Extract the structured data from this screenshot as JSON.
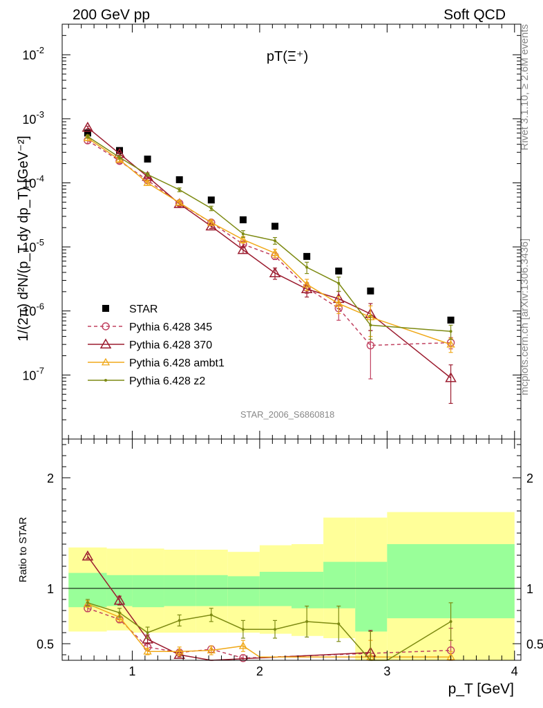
{
  "header": {
    "left_label": "200 GeV pp",
    "right_label": "Soft QCD"
  },
  "side_labels": {
    "rivet": "Rivet 3.1.10, ≥ 2.6M events",
    "mcplots": "mcplots.cern.ch [arXiv:1306.3436]"
  },
  "chart_data": [
    {
      "type": "scatter",
      "title": "pT(Ξ⁺)",
      "ylabel": "1/(2π) d²N/(p_T dy dp_T) [GeV⁻²]",
      "watermark": "STAR_2006_S6860818",
      "xlim": [
        0.45,
        4.05
      ],
      "ylim": [
        1e-08,
        0.03
      ],
      "yscale": "log",
      "x_ticks": [
        "1",
        "2",
        "3",
        "4"
      ],
      "y_ticks": [
        "10^-7",
        "10^-6",
        "10^-5",
        "10^-4",
        "10^-3",
        "10^-2"
      ],
      "legend_position": "lower-left",
      "series": [
        {
          "name": "STAR",
          "color": "#000000",
          "marker": "filled-square",
          "x": [
            0.65,
            0.9,
            1.12,
            1.37,
            1.62,
            1.87,
            2.12,
            2.37,
            2.62,
            2.87,
            3.5
          ],
          "y": [
            0.0006,
            0.00032,
            0.000235,
            0.000112,
            5.4e-05,
            2.65e-05,
            2.1e-05,
            7.1e-06,
            4.2e-06,
            2.05e-06,
            7.2e-07
          ]
        },
        {
          "name": "Pythia 6.428 345",
          "color": "#c0405f",
          "marker": "open-circle",
          "dashed": true,
          "x": [
            0.65,
            0.9,
            1.12,
            1.37,
            1.62,
            1.87,
            2.12,
            2.37,
            2.62,
            2.87,
            3.5
          ],
          "y": [
            0.00046,
            0.00022,
            0.00011,
            4.8e-05,
            2.4e-05,
            1.1e-05,
            7.2e-06,
            2.3e-06,
            1.1e-06,
            2.9e-07,
            3.2e-07
          ],
          "err": [
            0.1,
            0.08,
            0.06,
            0.06,
            0.08,
            0.1,
            0.12,
            0.18,
            0.35,
            0.7,
            0.2
          ]
        },
        {
          "name": "Pythia 6.428 370",
          "color": "#9b1b2e",
          "marker": "open-triangle",
          "dashed": false,
          "x": [
            0.65,
            0.9,
            1.12,
            1.37,
            1.62,
            1.87,
            2.12,
            2.37,
            2.62,
            2.87,
            3.5
          ],
          "y": [
            0.00073,
            0.000285,
            0.000125,
            4.7e-05,
            2.1e-05,
            9e-06,
            3.9e-06,
            2.2e-06,
            1.55e-06,
            9e-07,
            9e-08
          ],
          "err": [
            0.05,
            0.05,
            0.06,
            0.07,
            0.08,
            0.12,
            0.2,
            0.25,
            0.3,
            0.45,
            0.6
          ]
        },
        {
          "name": "Pythia 6.428 ambt1",
          "color": "#f0a91a",
          "marker": "open-triangle-small",
          "dashed": false,
          "x": [
            0.65,
            0.9,
            1.12,
            1.37,
            1.62,
            1.87,
            2.12,
            2.37,
            2.62,
            2.87,
            3.5
          ],
          "y": [
            0.0005,
            0.00023,
            0.0001,
            4.9e-05,
            2.4e-05,
            1.3e-05,
            8e-06,
            2.6e-06,
            1.3e-06,
            8e-07,
            3e-07
          ],
          "err": [
            0.08,
            0.07,
            0.08,
            0.08,
            0.1,
            0.12,
            0.15,
            0.2,
            0.3,
            0.5,
            0.25
          ]
        },
        {
          "name": "Pythia 6.428 z2",
          "color": "#7d8a12",
          "marker": "dot",
          "dashed": false,
          "x": [
            0.65,
            0.9,
            1.12,
            1.37,
            1.62,
            1.87,
            2.12,
            2.37,
            2.62,
            2.87,
            3.5
          ],
          "y": [
            0.00053,
            0.00025,
            0.000135,
            7.8e-05,
            4e-05,
            1.6e-05,
            1.25e-05,
            4.8e-06,
            2.7e-06,
            6e-07,
            4.8e-07
          ],
          "err": [
            0.06,
            0.06,
            0.06,
            0.07,
            0.08,
            0.12,
            0.12,
            0.2,
            0.25,
            0.4,
            0.25
          ]
        }
      ]
    },
    {
      "type": "line",
      "ylabel": "Ratio to STAR",
      "xlabel": "p_T [GeV]",
      "xlim": [
        0.45,
        4.05
      ],
      "ylim": [
        0.35,
        2.35
      ],
      "reference": 1,
      "x_ticks": [
        "1",
        "2",
        "3",
        "4"
      ],
      "y_ticks": [
        "0.5",
        "1",
        "2"
      ],
      "bands": {
        "x_edges": [
          0.5,
          0.8,
          1.0,
          1.25,
          1.5,
          1.75,
          2.0,
          2.25,
          2.5,
          2.75,
          3.0,
          4.0
        ],
        "inner_lo": [
          0.83,
          0.84,
          0.83,
          0.84,
          0.84,
          0.84,
          0.84,
          0.82,
          0.82,
          0.61,
          0.73
        ],
        "inner_hi": [
          1.14,
          1.12,
          1.12,
          1.12,
          1.12,
          1.11,
          1.15,
          1.15,
          1.24,
          1.24,
          1.4
        ],
        "outer_lo": [
          0.61,
          0.62,
          0.6,
          0.6,
          0.6,
          0.6,
          0.59,
          0.57,
          0.55,
          0.35,
          0.35
        ],
        "outer_hi": [
          1.37,
          1.36,
          1.36,
          1.35,
          1.35,
          1.33,
          1.39,
          1.4,
          1.64,
          1.64,
          1.69
        ],
        "inner_color": "#99ff99",
        "outer_color": "#ffff99"
      },
      "series": [
        {
          "name": "Pythia 6.428 345",
          "color": "#c0405f",
          "marker": "open-circle",
          "dashed": true,
          "x": [
            0.65,
            0.9,
            1.12,
            1.37,
            1.62,
            1.87,
            3.5
          ],
          "y": [
            0.82,
            0.72,
            0.47,
            0.42,
            0.45,
            0.37,
            0.44
          ],
          "err": [
            0.03,
            0.03,
            0.03,
            0.03,
            0.03,
            0.03,
            0.2
          ]
        },
        {
          "name": "Pythia 6.428 370",
          "color": "#9b1b2e",
          "marker": "open-triangle",
          "dashed": false,
          "x": [
            0.65,
            0.9,
            1.12,
            1.37,
            1.62,
            2.87
          ],
          "y": [
            1.29,
            0.89,
            0.54,
            0.4,
            0.33,
            0.42
          ],
          "err": [
            0.02,
            0.04,
            0.04,
            0.02,
            0.02,
            0.2
          ]
        },
        {
          "name": "Pythia 6.428 ambt1",
          "color": "#f0a91a",
          "marker": "open-triangle-small",
          "dashed": false,
          "x": [
            0.65,
            0.9,
            1.12,
            1.37,
            1.62,
            1.87,
            2.0,
            2.87,
            3.5
          ],
          "y": [
            0.86,
            0.74,
            0.43,
            0.43,
            0.44,
            0.48,
            0.38,
            0.38,
            0.38
          ],
          "err": [
            0.03,
            0.04,
            0.03,
            0.04,
            0.04,
            0.05,
            0,
            0.15,
            0.05
          ]
        },
        {
          "name": "Pythia 6.428 z2",
          "color": "#7d8a12",
          "marker": "dot",
          "dashed": false,
          "x": [
            0.65,
            0.9,
            1.12,
            1.37,
            1.62,
            1.87,
            2.12,
            2.37,
            2.62,
            2.87,
            3.0,
            3.5
          ],
          "y": [
            0.87,
            0.78,
            0.6,
            0.71,
            0.76,
            0.63,
            0.63,
            0.7,
            0.68,
            0.31,
            0.3,
            0.7
          ],
          "err": [
            0.03,
            0.04,
            0.05,
            0.05,
            0.06,
            0.08,
            0.08,
            0.14,
            0.16,
            0.3,
            0,
            0.17
          ]
        }
      ]
    }
  ]
}
